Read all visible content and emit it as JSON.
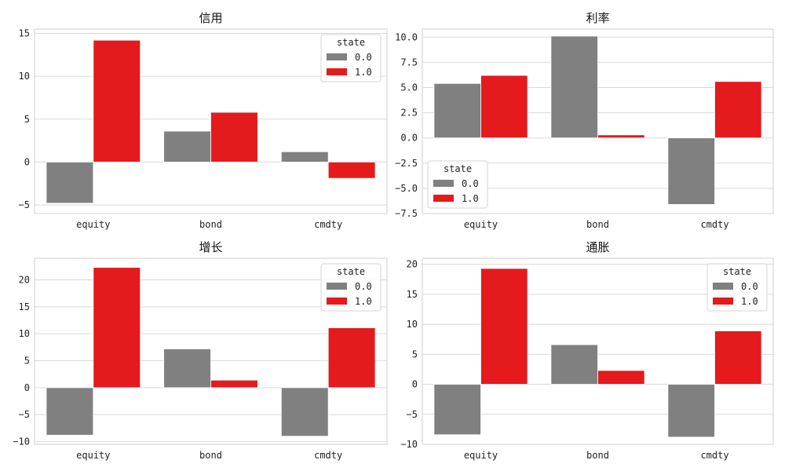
{
  "chart_data": [
    {
      "type": "bar",
      "title": "信用",
      "categories": [
        "equity",
        "bond",
        "cmdty"
      ],
      "ylim": [
        -6,
        15.5
      ],
      "yticks": [
        -5,
        0,
        5,
        10,
        15
      ],
      "ytick_labels": [
        "−5",
        "0",
        "5",
        "10",
        "15"
      ],
      "grid": true,
      "legend": {
        "title": "state",
        "placement": "top-right"
      },
      "series": [
        {
          "name": "0.0",
          "color": "#808080",
          "values": [
            -4.8,
            3.6,
            1.2
          ]
        },
        {
          "name": "1.0",
          "color": "#e41a1c",
          "values": [
            14.2,
            5.8,
            -1.9
          ]
        }
      ]
    },
    {
      "type": "bar",
      "title": "利率",
      "categories": [
        "equity",
        "bond",
        "cmdty"
      ],
      "ylim": [
        -7.5,
        10.8
      ],
      "yticks": [
        -7.5,
        -5,
        -2.5,
        0,
        2.5,
        5,
        7.5,
        10
      ],
      "ytick_labels": [
        "−7.5",
        "−5.0",
        "−2.5",
        "0.0",
        "2.5",
        "5.0",
        "7.5",
        "10.0"
      ],
      "grid": true,
      "legend": {
        "title": "state",
        "placement": "bottom-left"
      },
      "series": [
        {
          "name": "0.0",
          "color": "#808080",
          "values": [
            5.4,
            10.1,
            -6.6
          ]
        },
        {
          "name": "1.0",
          "color": "#e41a1c",
          "values": [
            6.2,
            0.3,
            5.6
          ]
        }
      ]
    },
    {
      "type": "bar",
      "title": "增长",
      "categories": [
        "equity",
        "bond",
        "cmdty"
      ],
      "ylim": [
        -10.5,
        24
      ],
      "yticks": [
        -10,
        -5,
        0,
        5,
        10,
        15,
        20
      ],
      "ytick_labels": [
        "−10",
        "−5",
        "0",
        "5",
        "10",
        "15",
        "20"
      ],
      "grid": true,
      "legend": {
        "title": "state",
        "placement": "top-right"
      },
      "series": [
        {
          "name": "0.0",
          "color": "#808080",
          "values": [
            -8.8,
            7.2,
            -9.0
          ]
        },
        {
          "name": "1.0",
          "color": "#e41a1c",
          "values": [
            22.3,
            1.4,
            11.1
          ]
        }
      ]
    },
    {
      "type": "bar",
      "title": "通胀",
      "categories": [
        "equity",
        "bond",
        "cmdty"
      ],
      "ylim": [
        -10,
        21
      ],
      "yticks": [
        -10,
        -5,
        0,
        5,
        10,
        15,
        20
      ],
      "ytick_labels": [
        "−10",
        "−5",
        "0",
        "5",
        "10",
        "15",
        "20"
      ],
      "grid": true,
      "legend": {
        "title": "state",
        "placement": "top-right"
      },
      "series": [
        {
          "name": "0.0",
          "color": "#808080",
          "values": [
            -8.4,
            6.6,
            -8.8
          ]
        },
        {
          "name": "1.0",
          "color": "#e41a1c",
          "values": [
            19.3,
            2.3,
            8.9
          ]
        }
      ]
    }
  ]
}
